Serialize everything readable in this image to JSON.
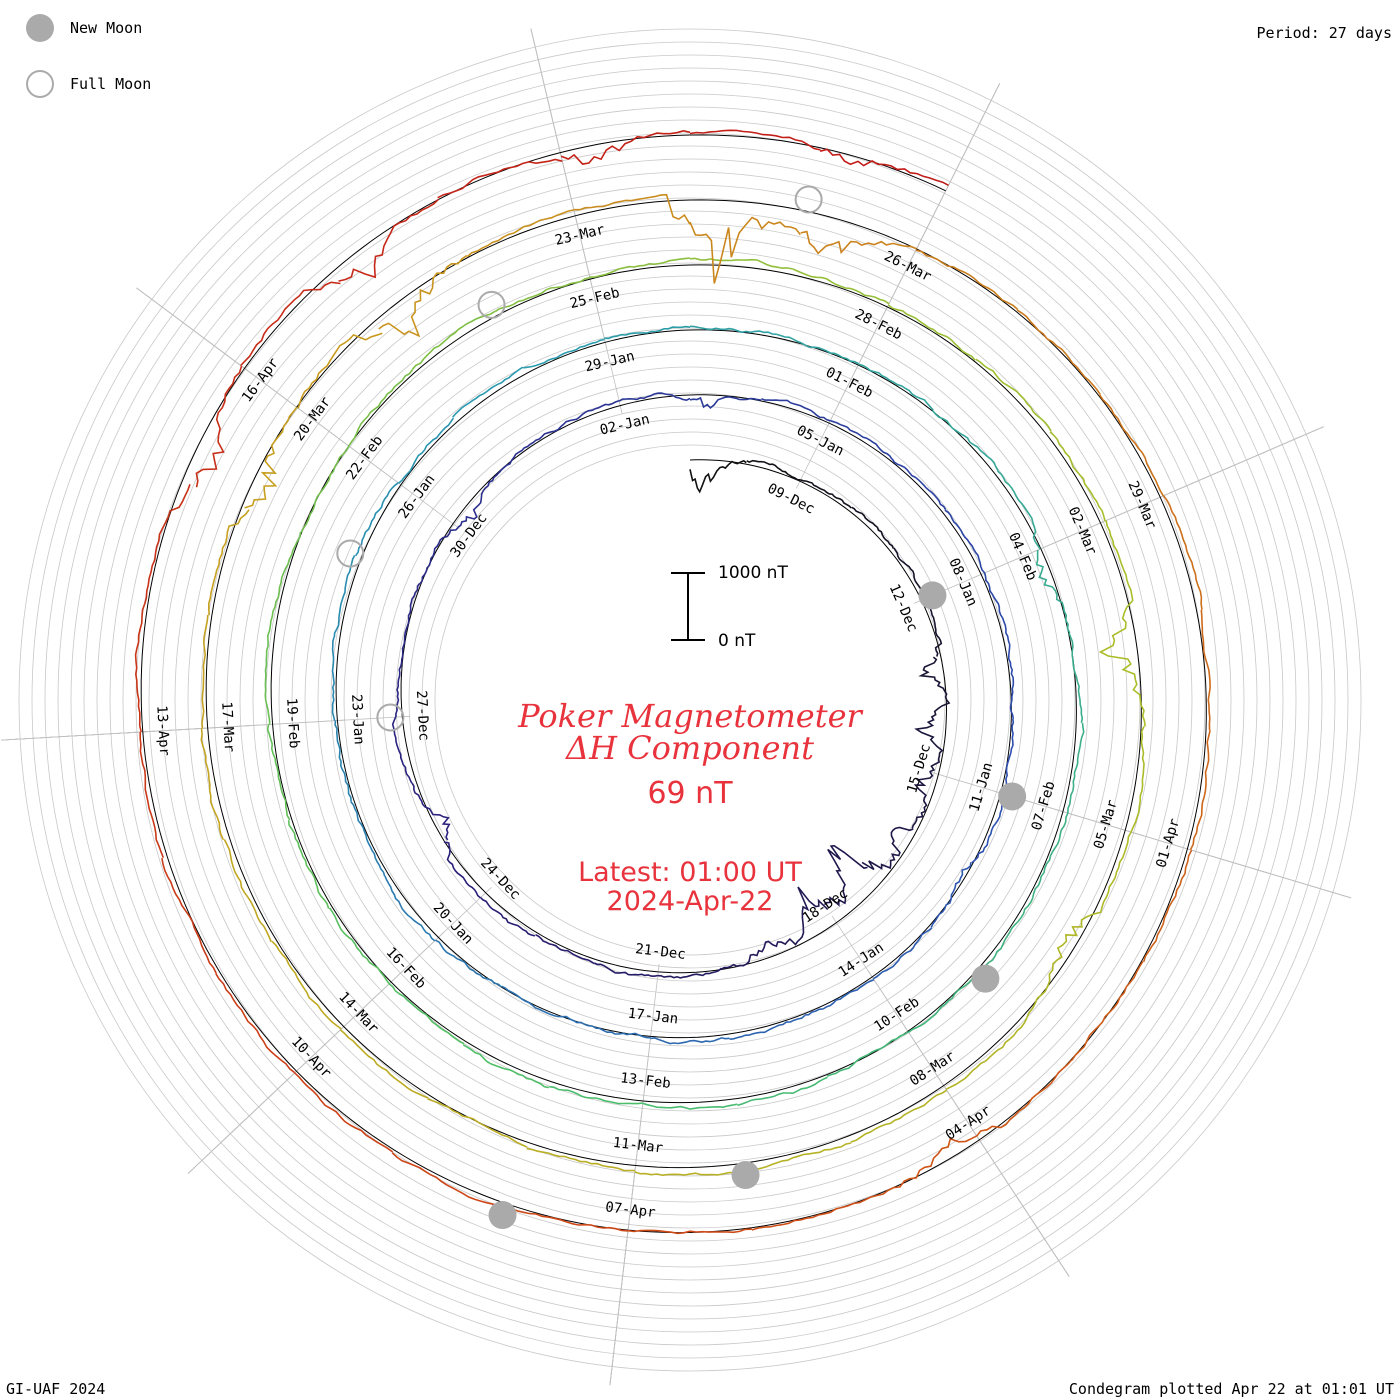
{
  "header": {
    "period_label": "Period: 27 days"
  },
  "legend": {
    "new_moon_label": "New Moon",
    "full_moon_label": "Full Moon",
    "new_moon_color": "#aaaaaa",
    "full_moon_color": "#aaaaaa"
  },
  "footer": {
    "credit": "GI-UAF 2024",
    "plotted": "Condegram plotted Apr 22 at 01:01 UT"
  },
  "center": {
    "title_line1": "Poker Magnetometer",
    "title_line2": "ΔH Component",
    "current_value": "69 nT",
    "latest_line1": "Latest: 01:00 UT",
    "latest_line2": "2024-Apr-22",
    "text_color": "#e8323c"
  },
  "scale_bar": {
    "top_label": "1000 nT",
    "bottom_label": "0 nT"
  },
  "chart_data": {
    "type": "line",
    "plot_style": "condegram spiral",
    "period_days": 27,
    "value_component": "ΔH",
    "value_unit": "nT",
    "start_date": "2023-12-07",
    "end_date": "2024-04-22",
    "latest_value_nT": 69,
    "color_gradient": [
      "#111111",
      "#2a1f7a",
      "#2e4fb0",
      "#2a9bb0",
      "#4cbf6a",
      "#a8bf2a",
      "#c8a020",
      "#d05018",
      "#c01818"
    ],
    "date_labels": [
      {
        "label": "09-Dec",
        "date": "2023-12-09"
      },
      {
        "label": "12-Dec",
        "date": "2023-12-12"
      },
      {
        "label": "15-Dec",
        "date": "2023-12-15"
      },
      {
        "label": "18-Dec",
        "date": "2023-12-18"
      },
      {
        "label": "21-Dec",
        "date": "2023-12-21"
      },
      {
        "label": "24-Dec",
        "date": "2023-12-24"
      },
      {
        "label": "27-Dec",
        "date": "2023-12-27"
      },
      {
        "label": "30-Dec",
        "date": "2023-12-30"
      },
      {
        "label": "02-Jan",
        "date": "2024-01-02"
      },
      {
        "label": "05-Jan",
        "date": "2024-01-05"
      },
      {
        "label": "08-Jan",
        "date": "2024-01-08"
      },
      {
        "label": "11-Jan",
        "date": "2024-01-11"
      },
      {
        "label": "14-Jan",
        "date": "2024-01-14"
      },
      {
        "label": "17-Jan",
        "date": "2024-01-17"
      },
      {
        "label": "20-Jan",
        "date": "2024-01-20"
      },
      {
        "label": "23-Jan",
        "date": "2024-01-23"
      },
      {
        "label": "26-Jan",
        "date": "2024-01-26"
      },
      {
        "label": "29-Jan",
        "date": "2024-01-29"
      },
      {
        "label": "01-Feb",
        "date": "2024-02-01"
      },
      {
        "label": "04-Feb",
        "date": "2024-02-04"
      },
      {
        "label": "07-Feb",
        "date": "2024-02-07"
      },
      {
        "label": "10-Feb",
        "date": "2024-02-10"
      },
      {
        "label": "13-Feb",
        "date": "2024-02-13"
      },
      {
        "label": "16-Feb",
        "date": "2024-02-16"
      },
      {
        "label": "19-Feb",
        "date": "2024-02-19"
      },
      {
        "label": "22-Feb",
        "date": "2024-02-22"
      },
      {
        "label": "25-Feb",
        "date": "2024-02-25"
      },
      {
        "label": "28-Feb",
        "date": "2024-02-28"
      },
      {
        "label": "02-Mar",
        "date": "2024-03-02"
      },
      {
        "label": "05-Mar",
        "date": "2024-03-05"
      },
      {
        "label": "08-Mar",
        "date": "2024-03-08"
      },
      {
        "label": "11-Mar",
        "date": "2024-03-11"
      },
      {
        "label": "14-Mar",
        "date": "2024-03-14"
      },
      {
        "label": "17-Mar",
        "date": "2024-03-17"
      },
      {
        "label": "20-Mar",
        "date": "2024-03-20"
      },
      {
        "label": "23-Mar",
        "date": "2024-03-23"
      },
      {
        "label": "26-Mar",
        "date": "2024-03-26"
      },
      {
        "label": "29-Mar",
        "date": "2024-03-29"
      },
      {
        "label": "01-Apr",
        "date": "2024-04-01"
      },
      {
        "label": "04-Apr",
        "date": "2024-04-04"
      },
      {
        "label": "07-Apr",
        "date": "2024-04-07"
      },
      {
        "label": "10-Apr",
        "date": "2024-04-10"
      },
      {
        "label": "13-Apr",
        "date": "2024-04-13"
      },
      {
        "label": "16-Apr",
        "date": "2024-04-16"
      }
    ],
    "new_moons": [
      "2023-12-12",
      "2024-01-11",
      "2024-02-09",
      "2024-03-10",
      "2024-04-08"
    ],
    "full_moons": [
      "2023-12-27",
      "2024-01-25",
      "2024-02-24",
      "2024-03-25"
    ],
    "disturbances": [
      {
        "date": "2023-12-07",
        "peak_nT": 700
      },
      {
        "date": "2023-12-13",
        "peak_nT": 450
      },
      {
        "date": "2023-12-14",
        "peak_nT": 600
      },
      {
        "date": "2023-12-15",
        "peak_nT": 450
      },
      {
        "date": "2023-12-16",
        "peak_nT": 500
      },
      {
        "date": "2023-12-17",
        "peak_nT": 1300
      },
      {
        "date": "2023-12-18",
        "peak_nT": 750
      },
      {
        "date": "2023-12-19",
        "peak_nT": 400
      },
      {
        "date": "2023-12-25",
        "peak_nT": 380
      },
      {
        "date": "2023-12-30",
        "peak_nT": 300
      },
      {
        "date": "2024-01-03",
        "peak_nT": 250
      },
      {
        "date": "2024-01-12",
        "peak_nT": 180
      },
      {
        "date": "2024-02-04",
        "peak_nT": 300
      },
      {
        "date": "2024-03-03",
        "peak_nT": 700
      },
      {
        "date": "2024-03-06",
        "peak_nT": 400
      },
      {
        "date": "2024-03-19",
        "peak_nT": 600
      },
      {
        "date": "2024-03-21",
        "peak_nT": 700
      },
      {
        "date": "2024-03-24",
        "peak_nT": 1500
      },
      {
        "date": "2024-03-25",
        "peak_nT": 800
      },
      {
        "date": "2024-04-04",
        "peak_nT": 350
      },
      {
        "date": "2024-04-15",
        "peak_nT": 550
      },
      {
        "date": "2024-04-17",
        "peak_nT": 600
      },
      {
        "date": "2024-04-19",
        "peak_nT": 400
      },
      {
        "date": "2024-04-21",
        "peak_nT": 300
      }
    ]
  }
}
